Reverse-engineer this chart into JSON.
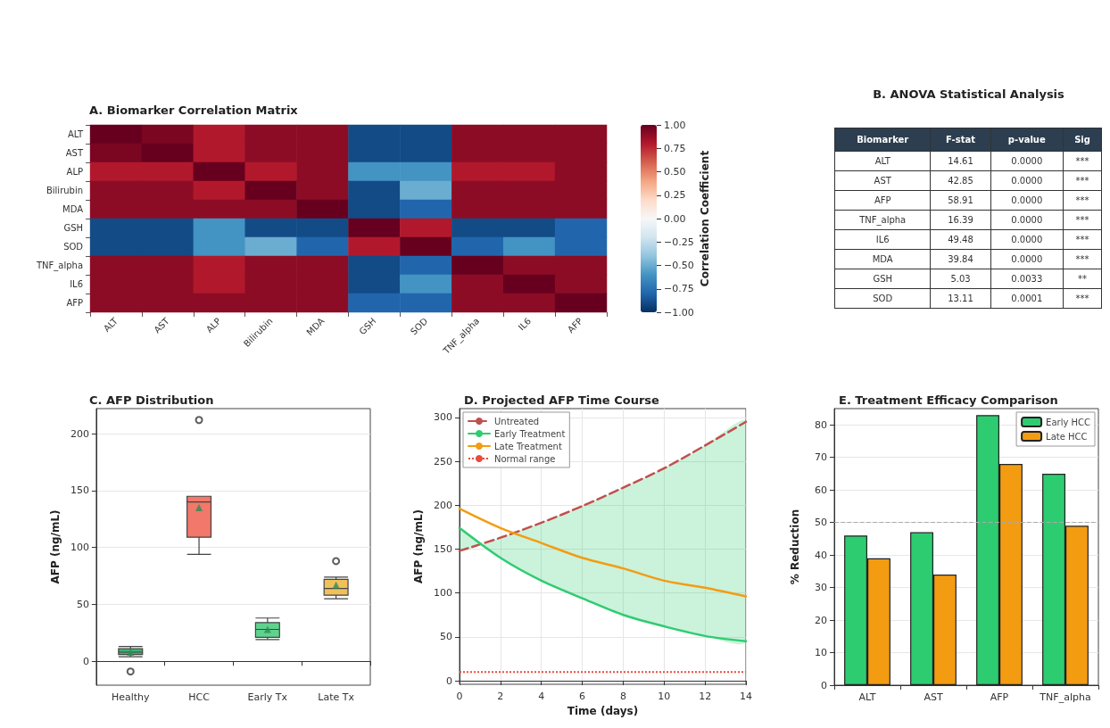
{
  "chart_data": [
    {
      "type": "heatmap",
      "title": "A. Biomarker Correlation Matrix",
      "categories": [
        "ALT",
        "AST",
        "ALP",
        "Bilirubin",
        "MDA",
        "GSH",
        "SOD",
        "TNF_alpha",
        "IL6",
        "AFP"
      ],
      "y_categories": [
        "ALT",
        "AST",
        "ALP",
        "Bilirubin",
        "MDA",
        "GSH",
        "SOD",
        "TNF_alpha",
        "IL6",
        "AFP"
      ],
      "cells": [
        [
          1,
          0.95,
          0.8,
          0.9,
          0.9,
          -0.9,
          -0.9,
          0.9,
          0.9,
          0.9
        ],
        [
          0.95,
          1,
          0.8,
          0.9,
          0.9,
          -0.9,
          -0.9,
          0.9,
          0.9,
          0.9
        ],
        [
          0.8,
          0.8,
          1,
          0.8,
          0.9,
          -0.6,
          -0.6,
          0.8,
          0.8,
          0.9
        ],
        [
          0.9,
          0.9,
          0.8,
          1,
          0.9,
          -0.9,
          -0.5,
          0.9,
          0.9,
          0.9
        ],
        [
          0.9,
          0.9,
          0.9,
          0.9,
          1,
          -0.9,
          -0.8,
          0.9,
          0.9,
          0.9
        ],
        [
          -0.9,
          -0.9,
          -0.6,
          -0.9,
          -0.9,
          1,
          0.8,
          -0.9,
          -0.9,
          -0.8
        ],
        [
          -0.9,
          -0.9,
          -0.6,
          -0.5,
          -0.8,
          0.8,
          1,
          -0.8,
          -0.6,
          -0.8
        ],
        [
          0.9,
          0.9,
          0.8,
          0.9,
          0.9,
          -0.9,
          -0.8,
          1,
          0.9,
          0.9
        ],
        [
          0.9,
          0.9,
          0.8,
          0.9,
          0.9,
          -0.9,
          -0.6,
          0.9,
          1,
          0.9
        ],
        [
          0.9,
          0.9,
          0.9,
          0.9,
          0.9,
          -0.8,
          -0.8,
          0.9,
          0.9,
          1
        ]
      ],
      "clim": [
        -1,
        1
      ],
      "cticks": [
        {
          "value": 1,
          "label": "1.00"
        },
        {
          "value": 0.75,
          "label": "0.75"
        },
        {
          "value": 0.5,
          "label": "0.50"
        },
        {
          "value": 0.25,
          "label": "0.25"
        },
        {
          "value": 0,
          "label": "0.00"
        },
        {
          "value": -0.25,
          "label": "−0.25"
        },
        {
          "value": -0.5,
          "label": "−0.50"
        },
        {
          "value": -0.75,
          "label": "−0.75"
        },
        {
          "value": -1,
          "label": "−1.00"
        }
      ],
      "clabel": "Correlation Coefficient"
    },
    {
      "type": "other",
      "title": "B. ANOVA Statistical Analysis",
      "xlabel": "Biomarker",
      "categories": [
        "ALT",
        "AST",
        "AFP",
        "TNF_alpha",
        "IL6",
        "MDA",
        "GSH",
        "SOD"
      ],
      "series": [
        {
          "name": "F-stat",
          "values": [
            14.61,
            42.85,
            58.91,
            16.39,
            49.48,
            39.84,
            5.03,
            13.11
          ],
          "value_labels": [
            "14.61",
            "42.85",
            "58.91",
            "16.39",
            "49.48",
            "39.84",
            "5.03",
            "13.11"
          ]
        },
        {
          "name": "p-value",
          "values": [
            0,
            0,
            0,
            0,
            0,
            0,
            0.0033,
            0.0001
          ],
          "value_labels": [
            "0.0000",
            "0.0000",
            "0.0000",
            "0.0000",
            "0.0000",
            "0.0000",
            "0.0033",
            "0.0001"
          ]
        },
        {
          "name": "Sig",
          "values": [
            null,
            null,
            null,
            null,
            null,
            null,
            null,
            null
          ],
          "value_labels": [
            "***",
            "***",
            "***",
            "***",
            "***",
            "***",
            "**",
            "***"
          ]
        }
      ]
    },
    {
      "type": "box",
      "title": "C. AFP Distribution",
      "ylabel": "AFP (ng/mL)",
      "categories": [
        "Healthy",
        "HCC",
        "Early Tx",
        "Late Tx"
      ],
      "colors": [
        "#3cb371",
        "#f1786a",
        "#5fd38d",
        "#f0c05a"
      ],
      "boxes": [
        {
          "low": 4,
          "q1": 6,
          "median": 8,
          "q3": 11,
          "high": 13,
          "mean": 8,
          "outliers": [
            -9
          ]
        },
        {
          "low": 94,
          "q1": 109,
          "median": 140,
          "q3": 145,
          "high": 145,
          "mean": 135,
          "outliers": [
            212
          ]
        },
        {
          "low": 19,
          "q1": 21,
          "median": 28,
          "q3": 34,
          "high": 38,
          "mean": 28
        },
        {
          "low": 55,
          "q1": 58,
          "median": 64,
          "q3": 72,
          "high": 74,
          "mean": 67,
          "outliers": [
            88
          ]
        }
      ],
      "ylim": [
        -21,
        222
      ],
      "yticks": [
        0,
        50,
        100,
        150,
        200
      ],
      "grid": "y"
    },
    {
      "type": "line",
      "title": "D. Projected AFP Time Course",
      "xlabel": "Time (days)",
      "ylabel": "AFP (ng/mL)",
      "x": [
        0,
        2,
        4,
        6,
        8,
        10,
        12,
        14
      ],
      "series": [
        {
          "name": "Untreated",
          "color": "#c0504d",
          "line_style": "dashed",
          "values": [
            148,
            163,
            180,
            199,
            220,
            242,
            268,
            295
          ]
        },
        {
          "name": "Early Treatment",
          "color": "#2ecc71",
          "values": [
            174,
            140,
            114,
            94,
            75,
            62,
            51,
            45
          ],
          "lower": [
            174,
            140,
            114,
            94,
            75,
            62,
            51,
            45
          ],
          "upper": [
            148,
            163,
            180,
            199,
            220,
            242,
            268,
            295
          ]
        },
        {
          "name": "Late Treatment",
          "color": "#f39c12",
          "values": [
            196,
            174,
            157,
            140,
            128,
            114,
            106,
            96
          ]
        }
      ],
      "ref_lines": [
        {
          "axis": "y",
          "value": 10,
          "label": "Normal range",
          "color": "#e74c3c",
          "line_style": "dotted"
        }
      ],
      "xlim": [
        0,
        14
      ],
      "xticks": [
        0,
        2,
        4,
        6,
        8,
        10,
        12,
        14
      ],
      "ylim": [
        -4,
        310
      ],
      "yticks": [
        0,
        50,
        100,
        150,
        200,
        250,
        300
      ],
      "grid": true,
      "legend": "top left",
      "marker": "none",
      "line_style": "solid"
    },
    {
      "type": "bar",
      "title": "E. Treatment Efficacy Comparison",
      "ylabel": "% Reduction",
      "categories": [
        "ALT",
        "AST",
        "AFP",
        "TNF_alpha"
      ],
      "series": [
        {
          "name": "Early HCC",
          "color": "#2ecc71",
          "values": [
            46,
            47,
            83,
            65
          ]
        },
        {
          "name": "Late HCC",
          "color": "#f39c12",
          "values": [
            39,
            34,
            68,
            49
          ]
        }
      ],
      "ylim": [
        0,
        85
      ],
      "yticks": [
        0,
        10,
        20,
        30,
        40,
        50,
        60,
        70,
        80
      ],
      "ref_lines": [
        {
          "axis": "y",
          "value": 50,
          "color": "#aaaaaa",
          "line_style": "dashed"
        }
      ],
      "grid": "y",
      "legend": "top right"
    }
  ]
}
